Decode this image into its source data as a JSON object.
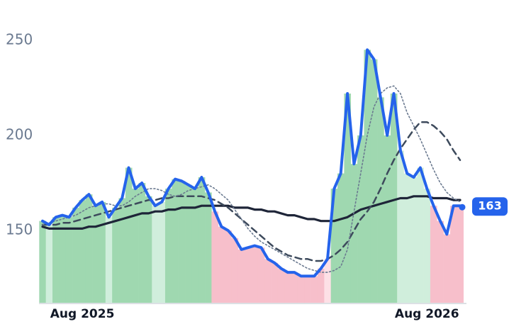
{
  "chart_data": {
    "type": "line",
    "categories": [
      null,
      null,
      null,
      null,
      null,
      null,
      "Aug 2025",
      null,
      null,
      null,
      null,
      null,
      null,
      null,
      null,
      null,
      null,
      null,
      null,
      null,
      null,
      null,
      null,
      null,
      null,
      null,
      null,
      null,
      null,
      null,
      null,
      null,
      null,
      null,
      null,
      null,
      null,
      null,
      null,
      null,
      null,
      null,
      null,
      null,
      null,
      null,
      null,
      null,
      null,
      null,
      null,
      null,
      null,
      null,
      null,
      null,
      null,
      null,
      "Aug 2026",
      null,
      null,
      null,
      null,
      null
    ],
    "series": [
      {
        "color": "#2563eb",
        "width": 4,
        "dash": "none",
        "last_label": true,
        "values": [
          155,
          153,
          157,
          158,
          157,
          162,
          166,
          169,
          163,
          165,
          157,
          162,
          167,
          183,
          172,
          175,
          168,
          163,
          165,
          172,
          177,
          176,
          174,
          172,
          178,
          170,
          160,
          152,
          150,
          146,
          140,
          141,
          142,
          141,
          135,
          133,
          130,
          128,
          128,
          126,
          126,
          126,
          130,
          135,
          172,
          180,
          222,
          185,
          200,
          245,
          240,
          220,
          200,
          222,
          192,
          180,
          178,
          183,
          172,
          163,
          155,
          148,
          163,
          163
        ]
      },
      {
        "color": "#6b7a90",
        "width": 1.6,
        "dash": "2 3",
        "values": [
          153,
          154,
          155,
          156,
          157,
          158,
          160,
          162,
          163,
          164,
          164,
          163,
          163,
          165,
          168,
          170,
          172,
          172,
          171,
          169,
          168,
          169,
          171,
          172,
          173,
          174,
          172,
          169,
          166,
          161,
          156,
          151,
          147,
          144,
          142,
          140,
          138,
          136,
          134,
          132,
          130,
          129,
          128,
          128,
          129,
          131,
          140,
          160,
          180,
          200,
          215,
          222,
          225,
          226,
          222,
          212,
          205,
          198,
          190,
          182,
          175,
          170,
          167,
          165
        ]
      },
      {
        "color": "#3d4a5c",
        "width": 2.5,
        "dash": "9 6",
        "values": [
          153,
          153,
          153,
          154,
          154,
          155,
          156,
          157,
          158,
          159,
          160,
          161,
          162,
          163,
          164,
          165,
          166,
          166,
          167,
          167,
          168,
          168,
          168,
          168,
          168,
          167,
          166,
          164,
          162,
          159,
          156,
          153,
          150,
          147,
          144,
          141,
          139,
          137,
          136,
          135,
          135,
          134,
          134,
          135,
          137,
          140,
          144,
          150,
          156,
          160,
          165,
          172,
          180,
          187,
          193,
          198,
          203,
          207,
          207,
          205,
          202,
          198,
          192,
          187
        ]
      },
      {
        "color": "#1e2538",
        "width": 3.2,
        "dash": "none",
        "values": [
          152,
          151,
          151,
          151,
          151,
          151,
          151,
          152,
          152,
          153,
          154,
          155,
          156,
          157,
          158,
          159,
          159,
          160,
          160,
          161,
          161,
          162,
          162,
          162,
          163,
          163,
          163,
          163,
          163,
          162,
          162,
          162,
          161,
          161,
          160,
          160,
          159,
          158,
          158,
          157,
          156,
          156,
          155,
          155,
          155,
          156,
          157,
          159,
          161,
          162,
          163,
          164,
          165,
          166,
          167,
          167,
          168,
          168,
          168,
          167,
          167,
          167,
          166,
          166
        ]
      }
    ],
    "band_colors": {
      "up_strong": "#9fd8b0",
      "up_weak": "#d0eedc",
      "down_strong": "#f7bfcb",
      "down_weak": "#fde0e6"
    },
    "ylim": [
      112,
      260
    ],
    "yticks": [
      150,
      200,
      250
    ],
    "grid": false
  }
}
